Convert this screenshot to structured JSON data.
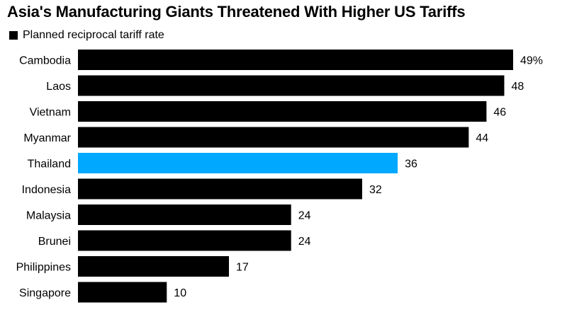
{
  "chart_data": {
    "type": "bar",
    "orientation": "horizontal",
    "title": "Asia's Manufacturing Giants Threatened With Higher US Tariffs",
    "series": [
      {
        "name": "Planned reciprocal tariff rate",
        "color": "#000000",
        "highlight_color": "#00a8ff",
        "highlight_category": "Thailand",
        "values": [
          49,
          48,
          46,
          44,
          36,
          32,
          24,
          24,
          17,
          10
        ],
        "value_labels": [
          "49%",
          "48",
          "46",
          "44",
          "36",
          "32",
          "24",
          "24",
          "17",
          "10"
        ]
      }
    ],
    "categories": [
      "Cambodia",
      "Laos",
      "Vietnam",
      "Myanmar",
      "Thailand",
      "Indonesia",
      "Malaysia",
      "Brunei",
      "Philippines",
      "Singapore"
    ],
    "xlim": [
      0,
      49
    ],
    "grid": false,
    "legend_position": "top-left"
  }
}
